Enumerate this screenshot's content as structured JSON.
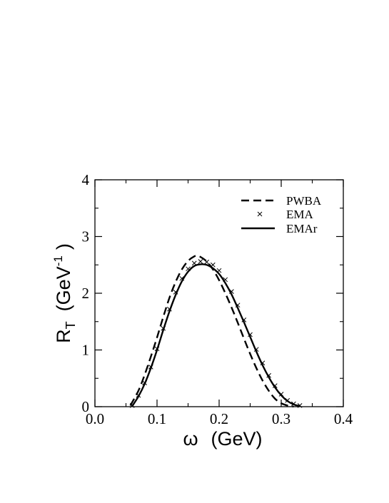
{
  "chart_data": {
    "type": "line",
    "xlabel_symbol": "ω",
    "xlabel_unit": "(GeV)",
    "ylabel_main": "R",
    "ylabel_sub": "T",
    "ylabel_unit_pre": "(GeV",
    "ylabel_unit_exp": "-1",
    "ylabel_unit_post": ")",
    "xlim": [
      0.0,
      0.4
    ],
    "ylim": [
      0,
      4
    ],
    "x_ticks": [
      "0.0",
      "0.1",
      "0.2",
      "0.3",
      "0.4"
    ],
    "y_ticks": [
      "0",
      "1",
      "2",
      "3",
      "4"
    ],
    "grid": false,
    "legend_position": "top-right",
    "series": [
      {
        "name": "PWBA",
        "style": "dashed",
        "x": [
          0.057,
          0.07,
          0.08,
          0.09,
          0.1,
          0.11,
          0.12,
          0.13,
          0.14,
          0.15,
          0.16,
          0.165,
          0.17,
          0.18,
          0.19,
          0.2,
          0.21,
          0.22,
          0.23,
          0.24,
          0.25,
          0.26,
          0.27,
          0.28,
          0.29,
          0.3,
          0.31,
          0.32
        ],
        "y": [
          0.02,
          0.28,
          0.56,
          0.88,
          1.22,
          1.58,
          1.92,
          2.2,
          2.42,
          2.57,
          2.65,
          2.66,
          2.64,
          2.56,
          2.42,
          2.23,
          2.0,
          1.75,
          1.48,
          1.2,
          0.93,
          0.68,
          0.46,
          0.28,
          0.14,
          0.06,
          0.02,
          0.0
        ]
      },
      {
        "name": "EMA",
        "style": "markers",
        "marker": "cross",
        "x": [
          0.06,
          0.07,
          0.08,
          0.09,
          0.1,
          0.11,
          0.12,
          0.13,
          0.14,
          0.15,
          0.16,
          0.17,
          0.18,
          0.19,
          0.2,
          0.21,
          0.22,
          0.23,
          0.24,
          0.25,
          0.26,
          0.27,
          0.28,
          0.29,
          0.3,
          0.31,
          0.32,
          0.33
        ],
        "y": [
          0.02,
          0.2,
          0.42,
          0.7,
          1.02,
          1.38,
          1.72,
          2.02,
          2.26,
          2.43,
          2.53,
          2.56,
          2.55,
          2.5,
          2.4,
          2.24,
          2.03,
          1.79,
          1.53,
          1.27,
          1.01,
          0.77,
          0.55,
          0.37,
          0.22,
          0.11,
          0.05,
          0.02
        ]
      },
      {
        "name": "EMAr",
        "style": "solid",
        "x": [
          0.06,
          0.07,
          0.08,
          0.09,
          0.1,
          0.11,
          0.12,
          0.13,
          0.14,
          0.15,
          0.16,
          0.17,
          0.18,
          0.19,
          0.2,
          0.21,
          0.22,
          0.23,
          0.24,
          0.25,
          0.26,
          0.27,
          0.28,
          0.29,
          0.3,
          0.31,
          0.32,
          0.33
        ],
        "y": [
          0.01,
          0.18,
          0.4,
          0.68,
          1.0,
          1.35,
          1.68,
          1.97,
          2.21,
          2.38,
          2.48,
          2.51,
          2.5,
          2.44,
          2.34,
          2.18,
          1.98,
          1.74,
          1.49,
          1.23,
          0.97,
          0.73,
          0.52,
          0.34,
          0.2,
          0.1,
          0.04,
          0.01
        ]
      }
    ]
  }
}
